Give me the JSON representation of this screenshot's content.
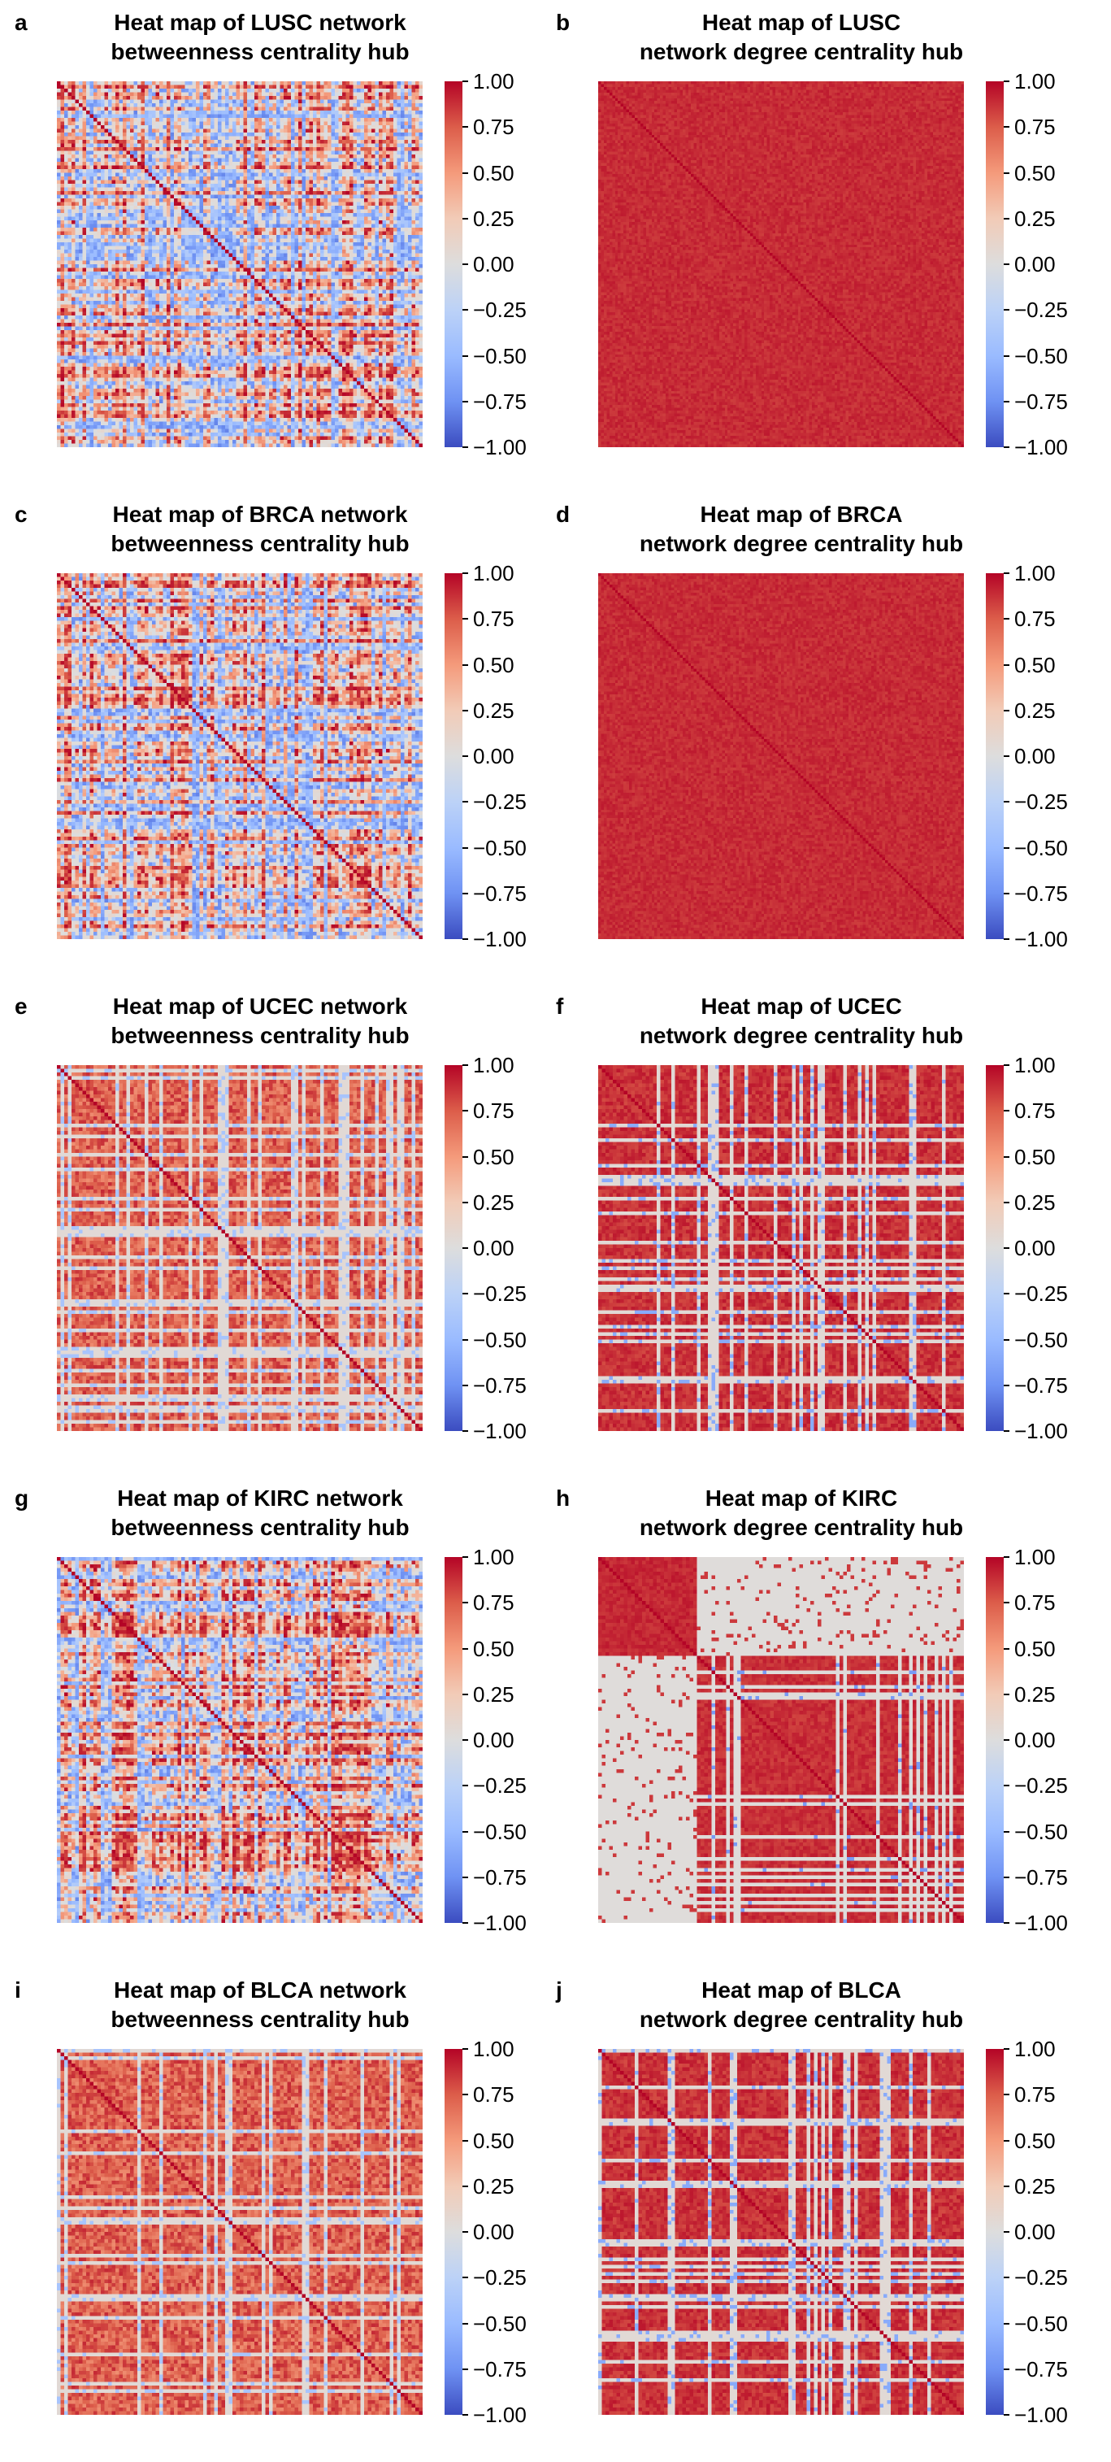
{
  "colorbar": {
    "ticks": [
      "1.00",
      "0.75",
      "0.50",
      "0.25",
      "0.00",
      "−0.25",
      "−0.50",
      "−0.75",
      "−1.00"
    ],
    "tick_values": [
      1.0,
      0.75,
      0.5,
      0.25,
      0.0,
      -0.25,
      -0.5,
      -0.75,
      -1.0
    ],
    "range": [
      -1.0,
      1.0
    ],
    "colormap": "coolwarm",
    "colors": [
      "#3b4cc0",
      "#6f92f3",
      "#9abbff",
      "#bcd2f7",
      "#dddddd",
      "#f2cbb7",
      "#f49a7b",
      "#dc5d4a",
      "#b40426"
    ]
  },
  "panels": [
    {
      "letter": "a",
      "title_line1": "Heat map of LUSC network",
      "title_line2": "betweenness centrality hub"
    },
    {
      "letter": "b",
      "title_line1": "Heat map of LUSC",
      "title_line2": "network degree centrality hub"
    },
    {
      "letter": "c",
      "title_line1": "Heat map of BRCA network",
      "title_line2": "betweenness centrality hub"
    },
    {
      "letter": "d",
      "title_line1": "Heat map of BRCA",
      "title_line2": "network degree centrality hub"
    },
    {
      "letter": "e",
      "title_line1": "Heat map of UCEC network",
      "title_line2": "betweenness centrality hub"
    },
    {
      "letter": "f",
      "title_line1": "Heat map of UCEC",
      "title_line2": "network degree centrality hub"
    },
    {
      "letter": "g",
      "title_line1": "Heat map of KIRC network",
      "title_line2": "betweenness centrality hub"
    },
    {
      "letter": "h",
      "title_line1": "Heat map of KIRC",
      "title_line2": "network degree centrality hub"
    },
    {
      "letter": "i",
      "title_line1": "Heat map of BLCA network",
      "title_line2": "betweenness centrality hub"
    },
    {
      "letter": "j",
      "title_line1": "Heat map of BLCA",
      "title_line2": "network degree centrality hub"
    }
  ],
  "chart_data": [
    {
      "type": "heatmap",
      "panel": "a",
      "title": "Heat map of LUSC network betweenness centrality hub",
      "vmin": -1.0,
      "vmax": 1.0,
      "diagonal": 1.0,
      "pattern": "mixed",
      "mean_offdiag": 0.3,
      "n_nodes": 100
    },
    {
      "type": "heatmap",
      "panel": "b",
      "title": "Heat map of LUSC network degree centrality hub",
      "vmin": -1.0,
      "vmax": 1.0,
      "diagonal": 1.0,
      "pattern": "uniform_high",
      "mean_offdiag": 0.9,
      "n_nodes": 130
    },
    {
      "type": "heatmap",
      "panel": "c",
      "title": "Heat map of BRCA network betweenness centrality hub",
      "vmin": -1.0,
      "vmax": 1.0,
      "diagonal": 1.0,
      "pattern": "mixed",
      "mean_offdiag": 0.25,
      "n_nodes": 100
    },
    {
      "type": "heatmap",
      "panel": "d",
      "title": "Heat map of BRCA network degree centrality hub",
      "vmin": -1.0,
      "vmax": 1.0,
      "diagonal": 1.0,
      "pattern": "uniform_high",
      "mean_offdiag": 0.92,
      "n_nodes": 130
    },
    {
      "type": "heatmap",
      "panel": "e",
      "title": "Heat map of UCEC network betweenness centrality hub",
      "vmin": -1.0,
      "vmax": 1.0,
      "diagonal": 1.0,
      "pattern": "mostly_high",
      "mean_offdiag": 0.6,
      "n_nodes": 100
    },
    {
      "type": "heatmap",
      "panel": "f",
      "title": "Heat map of UCEC network degree centrality hub",
      "vmin": -1.0,
      "vmax": 1.0,
      "diagonal": 1.0,
      "pattern": "banded",
      "mean_offdiag": 0.55,
      "n_nodes": 100
    },
    {
      "type": "heatmap",
      "panel": "g",
      "title": "Heat map of KIRC network betweenness centrality hub",
      "vmin": -1.0,
      "vmax": 1.0,
      "diagonal": 1.0,
      "pattern": "mixed",
      "mean_offdiag": 0.25,
      "n_nodes": 100
    },
    {
      "type": "heatmap",
      "panel": "h",
      "title": "Heat map of KIRC network degree centrality hub",
      "vmin": -1.0,
      "vmax": 1.0,
      "diagonal": 1.0,
      "pattern": "block",
      "mean_offdiag": 0.45,
      "n_nodes": 100
    },
    {
      "type": "heatmap",
      "panel": "i",
      "title": "Heat map of BLCA network betweenness centrality hub",
      "vmin": -1.0,
      "vmax": 1.0,
      "diagonal": 1.0,
      "pattern": "mostly_high",
      "mean_offdiag": 0.6,
      "n_nodes": 100
    },
    {
      "type": "heatmap",
      "panel": "j",
      "title": "Heat map of BLCA network degree centrality hub",
      "vmin": -1.0,
      "vmax": 1.0,
      "diagonal": 1.0,
      "pattern": "banded",
      "mean_offdiag": 0.75,
      "n_nodes": 100
    }
  ]
}
